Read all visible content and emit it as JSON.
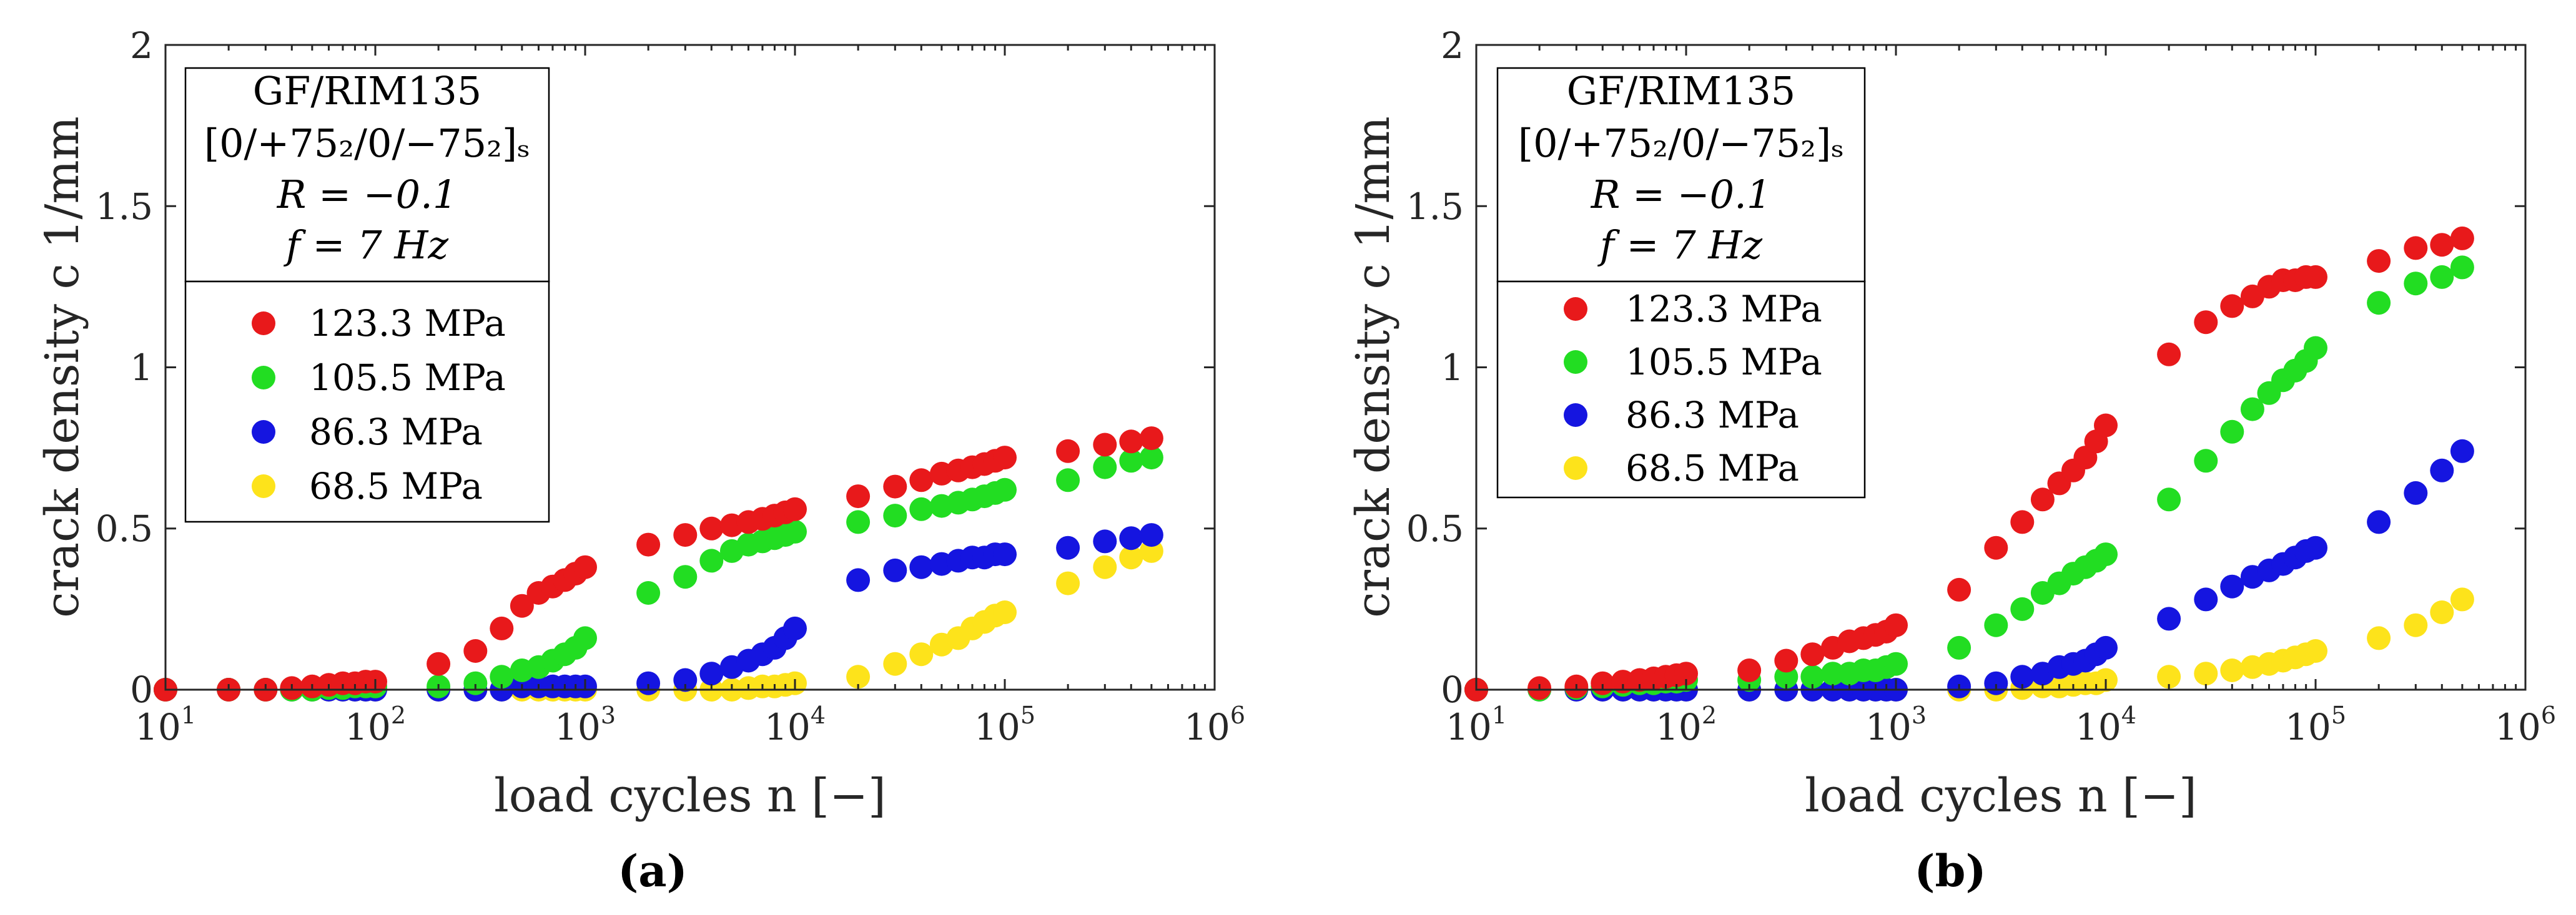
{
  "chart_data": [
    {
      "type": "scatter",
      "panel_label": "a",
      "xscale": "log",
      "xlim": [
        10,
        1000000
      ],
      "ylim": [
        0,
        2
      ],
      "xlabel": "load cycles n [−]",
      "ylabel": "crack density c  1/mm",
      "x_ticks": [
        {
          "base": "10",
          "exp": "1"
        },
        {
          "base": "10",
          "exp": "2"
        },
        {
          "base": "10",
          "exp": "3"
        },
        {
          "base": "10",
          "exp": "4"
        },
        {
          "base": "10",
          "exp": "5"
        },
        {
          "base": "10",
          "exp": "6"
        }
      ],
      "y_ticks": [
        "0",
        "0.5",
        "1",
        "1.5",
        "2"
      ],
      "info_box": {
        "material": "GF/RIM135",
        "layup": "[0/+75₂/0/−75₂]ₛ",
        "ratio": "R = −0.1",
        "frequency": "f = 7 Hz"
      },
      "legend_position": "top-left",
      "series": [
        {
          "name": "123.3 MPa",
          "color": "#e8191b",
          "x": [
            10,
            20,
            30,
            40,
            50,
            60,
            70,
            80,
            90,
            100,
            200,
            300,
            400,
            500,
            600,
            700,
            800,
            900,
            1000,
            2000,
            3000,
            4000,
            5000,
            6000,
            7000,
            8000,
            9000,
            10000,
            20000,
            30000,
            40000,
            50000,
            60000,
            70000,
            80000,
            90000,
            100000,
            200000,
            300000,
            400000,
            500000
          ],
          "y": [
            0,
            0,
            0,
            0.005,
            0.01,
            0.015,
            0.02,
            0.02,
            0.025,
            0.025,
            0.08,
            0.12,
            0.19,
            0.26,
            0.3,
            0.32,
            0.34,
            0.36,
            0.38,
            0.45,
            0.48,
            0.5,
            0.51,
            0.52,
            0.53,
            0.54,
            0.55,
            0.56,
            0.6,
            0.63,
            0.65,
            0.67,
            0.68,
            0.69,
            0.7,
            0.71,
            0.72,
            0.74,
            0.76,
            0.77,
            0.78
          ]
        },
        {
          "name": "105.5 MPa",
          "color": "#22dd22",
          "x": [
            10,
            20,
            30,
            40,
            50,
            60,
            70,
            80,
            90,
            100,
            200,
            300,
            400,
            500,
            600,
            700,
            800,
            900,
            1000,
            2000,
            3000,
            4000,
            5000,
            6000,
            7000,
            8000,
            9000,
            10000,
            20000,
            30000,
            40000,
            50000,
            60000,
            70000,
            80000,
            90000,
            100000,
            200000,
            300000,
            400000,
            500000
          ],
          "y": [
            0,
            0,
            0,
            0,
            0,
            0.005,
            0.005,
            0.01,
            0.01,
            0.01,
            0.01,
            0.02,
            0.04,
            0.06,
            0.07,
            0.09,
            0.11,
            0.13,
            0.16,
            0.3,
            0.35,
            0.4,
            0.43,
            0.45,
            0.46,
            0.47,
            0.48,
            0.49,
            0.52,
            0.54,
            0.56,
            0.57,
            0.58,
            0.59,
            0.6,
            0.61,
            0.62,
            0.65,
            0.69,
            0.71,
            0.72
          ]
        },
        {
          "name": "86.3 MPa",
          "color": "#1515e0",
          "x": [
            10,
            20,
            30,
            40,
            50,
            60,
            70,
            80,
            90,
            100,
            200,
            300,
            400,
            500,
            600,
            700,
            800,
            900,
            1000,
            2000,
            3000,
            4000,
            5000,
            6000,
            7000,
            8000,
            9000,
            10000,
            20000,
            30000,
            40000,
            50000,
            60000,
            70000,
            80000,
            90000,
            100000,
            200000,
            300000,
            400000,
            500000
          ],
          "y": [
            0,
            0,
            0,
            0,
            0,
            0,
            0,
            0,
            0,
            0,
            0,
            0,
            0,
            0.01,
            0.01,
            0.01,
            0.01,
            0.01,
            0.01,
            0.02,
            0.03,
            0.05,
            0.07,
            0.09,
            0.11,
            0.13,
            0.16,
            0.19,
            0.34,
            0.37,
            0.38,
            0.39,
            0.4,
            0.41,
            0.41,
            0.42,
            0.42,
            0.44,
            0.46,
            0.47,
            0.48
          ]
        },
        {
          "name": "68.5 MPa",
          "color": "#fde31b",
          "x": [
            10,
            20,
            30,
            40,
            50,
            60,
            70,
            80,
            90,
            100,
            200,
            300,
            400,
            500,
            600,
            700,
            800,
            900,
            1000,
            2000,
            3000,
            4000,
            5000,
            6000,
            7000,
            8000,
            9000,
            10000,
            20000,
            30000,
            40000,
            50000,
            60000,
            70000,
            80000,
            90000,
            100000,
            200000,
            300000,
            400000,
            500000
          ],
          "y": [
            0,
            0,
            0,
            0,
            0,
            0,
            0,
            0,
            0,
            0,
            0,
            0,
            0,
            0,
            0,
            0,
            0,
            0,
            0,
            0,
            0,
            0,
            0,
            0.005,
            0.01,
            0.01,
            0.015,
            0.02,
            0.04,
            0.08,
            0.11,
            0.14,
            0.16,
            0.19,
            0.21,
            0.23,
            0.24,
            0.33,
            0.38,
            0.41,
            0.43
          ]
        }
      ]
    },
    {
      "type": "scatter",
      "panel_label": "b",
      "xscale": "log",
      "xlim": [
        10,
        1000000
      ],
      "ylim": [
        0,
        2
      ],
      "xlabel": "load cycles n [−]",
      "ylabel": "crack density c  1/mm",
      "x_ticks": [
        {
          "base": "10",
          "exp": "1"
        },
        {
          "base": "10",
          "exp": "2"
        },
        {
          "base": "10",
          "exp": "3"
        },
        {
          "base": "10",
          "exp": "4"
        },
        {
          "base": "10",
          "exp": "5"
        },
        {
          "base": "10",
          "exp": "6"
        }
      ],
      "y_ticks": [
        "0",
        "0.5",
        "1",
        "1.5",
        "2"
      ],
      "info_box": {
        "material": "GF/RIM135",
        "layup": "[0/+75₂/0/−75₂]ₛ",
        "ratio": "R = −0.1",
        "frequency": "f = 7 Hz"
      },
      "legend_position": "top-left",
      "series": [
        {
          "name": "123.3 MPa",
          "color": "#e8191b",
          "x": [
            10,
            20,
            30,
            40,
            50,
            60,
            70,
            80,
            90,
            100,
            200,
            300,
            400,
            500,
            600,
            700,
            800,
            900,
            1000,
            2000,
            3000,
            4000,
            5000,
            6000,
            7000,
            8000,
            9000,
            10000,
            20000,
            30000,
            40000,
            50000,
            60000,
            70000,
            80000,
            90000,
            100000,
            200000,
            300000,
            400000,
            500000
          ],
          "y": [
            0,
            0.005,
            0.01,
            0.02,
            0.025,
            0.03,
            0.035,
            0.04,
            0.045,
            0.05,
            0.06,
            0.09,
            0.11,
            0.13,
            0.15,
            0.16,
            0.17,
            0.18,
            0.2,
            0.31,
            0.44,
            0.52,
            0.59,
            0.64,
            0.68,
            0.72,
            0.77,
            0.82,
            1.04,
            1.14,
            1.19,
            1.22,
            1.25,
            1.27,
            1.27,
            1.28,
            1.28,
            1.33,
            1.37,
            1.38,
            1.4
          ]
        },
        {
          "name": "105.5 MPa",
          "color": "#22dd22",
          "x": [
            10,
            20,
            30,
            40,
            50,
            60,
            70,
            80,
            90,
            100,
            200,
            300,
            400,
            500,
            600,
            700,
            800,
            900,
            1000,
            2000,
            3000,
            4000,
            5000,
            6000,
            7000,
            8000,
            9000,
            10000,
            20000,
            30000,
            40000,
            50000,
            60000,
            70000,
            80000,
            90000,
            100000,
            200000,
            300000,
            400000,
            500000
          ],
          "y": [
            0,
            0,
            0.005,
            0.01,
            0.015,
            0.02,
            0.02,
            0.025,
            0.025,
            0.03,
            0.03,
            0.04,
            0.04,
            0.05,
            0.05,
            0.06,
            0.06,
            0.07,
            0.08,
            0.13,
            0.2,
            0.25,
            0.3,
            0.33,
            0.36,
            0.38,
            0.4,
            0.42,
            0.59,
            0.71,
            0.8,
            0.87,
            0.92,
            0.96,
            0.99,
            1.02,
            1.06,
            1.2,
            1.26,
            1.28,
            1.31
          ]
        },
        {
          "name": "86.3 MPa",
          "color": "#1515e0",
          "x": [
            10,
            20,
            30,
            40,
            50,
            60,
            70,
            80,
            90,
            100,
            200,
            300,
            400,
            500,
            600,
            700,
            800,
            900,
            1000,
            2000,
            3000,
            4000,
            5000,
            6000,
            7000,
            8000,
            9000,
            10000,
            20000,
            30000,
            40000,
            50000,
            60000,
            70000,
            80000,
            90000,
            100000,
            200000,
            300000,
            400000,
            500000
          ],
          "y": [
            0,
            0,
            0,
            0,
            0,
            0,
            0,
            0,
            0,
            0,
            0,
            0,
            0,
            0,
            0,
            0,
            0,
            0,
            0,
            0.01,
            0.02,
            0.04,
            0.05,
            0.07,
            0.08,
            0.09,
            0.11,
            0.13,
            0.22,
            0.28,
            0.32,
            0.35,
            0.37,
            0.39,
            0.41,
            0.43,
            0.44,
            0.52,
            0.61,
            0.68,
            0.74
          ]
        },
        {
          "name": "68.5 MPa",
          "color": "#fde31b",
          "x": [
            10,
            20,
            30,
            40,
            50,
            60,
            70,
            80,
            90,
            100,
            200,
            300,
            400,
            500,
            600,
            700,
            800,
            900,
            1000,
            2000,
            3000,
            4000,
            5000,
            6000,
            7000,
            8000,
            9000,
            10000,
            20000,
            30000,
            40000,
            50000,
            60000,
            70000,
            80000,
            90000,
            100000,
            200000,
            300000,
            400000,
            500000
          ],
          "y": [
            0,
            0,
            0,
            0,
            0,
            0,
            0,
            0,
            0,
            0,
            0,
            0,
            0,
            0,
            0,
            0,
            0,
            0,
            0,
            0,
            0,
            0.005,
            0.01,
            0.01,
            0.015,
            0.02,
            0.02,
            0.03,
            0.04,
            0.05,
            0.06,
            0.07,
            0.08,
            0.09,
            0.1,
            0.11,
            0.12,
            0.16,
            0.2,
            0.24,
            0.28
          ]
        }
      ]
    }
  ],
  "captions": [
    "(a)",
    "(b)"
  ]
}
